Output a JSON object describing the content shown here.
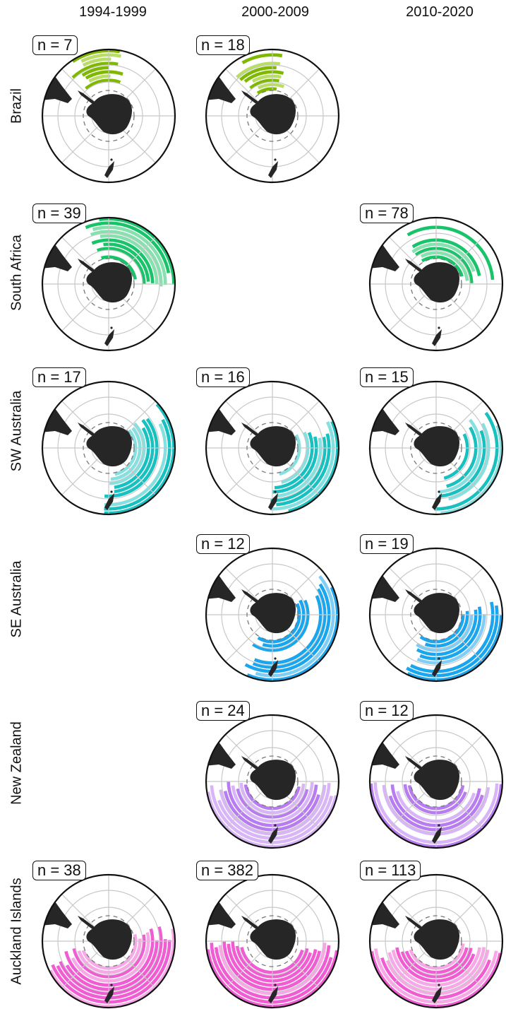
{
  "columns": [
    "1994-1999",
    "2000-2009",
    "2010-2020"
  ],
  "rows": [
    "Brazil",
    "South Africa",
    "SW Australia",
    "SE Australia",
    "New Zealand",
    "Auckland Islands"
  ],
  "colors": {
    "Brazil": {
      "dark": "#7fb800",
      "light": "#b9dd66"
    },
    "South Africa": {
      "dark": "#19c36a",
      "light": "#86e1ae"
    },
    "SW Australia": {
      "dark": "#18c0c0",
      "light": "#86e0e0"
    },
    "SE Australia": {
      "dark": "#1aa6ee",
      "light": "#80cdf6"
    },
    "New Zealand": {
      "dark": "#b77cf0",
      "light": "#d8b5f7"
    },
    "Auckland Islands": {
      "dark": "#f05cd2",
      "light": "#f7a8e6"
    },
    "land": "#262626",
    "grid": "#c8c8c8",
    "dashed_ring": "#777777"
  },
  "panels": [
    {
      "row": "Brazil",
      "period": "1994-1999",
      "n_label": "n = 7",
      "sector": [
        225,
        290
      ]
    },
    {
      "row": "Brazil",
      "period": "2000-2009",
      "n_label": "n = 18",
      "sector": [
        225,
        292
      ]
    },
    {
      "row": "South Africa",
      "period": "1994-1999",
      "n_label": "n = 39",
      "sector": [
        245,
        365
      ]
    },
    {
      "row": "South Africa",
      "period": "2010-2020",
      "n_label": "n = 78",
      "sector": [
        232,
        360
      ]
    },
    {
      "row": "SW Australia",
      "period": "1994-1999",
      "n_label": "n = 17",
      "sector": [
        -45,
        95
      ]
    },
    {
      "row": "SW Australia",
      "period": "2000-2009",
      "n_label": "n = 16",
      "sector": [
        -30,
        95
      ]
    },
    {
      "row": "SW Australia",
      "period": "2010-2020",
      "n_label": "n = 15",
      "sector": [
        -40,
        92
      ]
    },
    {
      "row": "SE Australia",
      "period": "2000-2009",
      "n_label": "n = 12",
      "sector": [
        -40,
        125
      ]
    },
    {
      "row": "SE Australia",
      "period": "2010-2020",
      "n_label": "n = 19",
      "sector": [
        -15,
        130
      ]
    },
    {
      "row": "New Zealand",
      "period": "2000-2009",
      "n_label": "n = 24",
      "sector": [
        0,
        180
      ]
    },
    {
      "row": "New Zealand",
      "period": "2010-2020",
      "n_label": "n = 12",
      "sector": [
        0,
        180
      ]
    },
    {
      "row": "Auckland Islands",
      "period": "1994-1999",
      "n_label": "n = 38",
      "sector": [
        -20,
        170
      ]
    },
    {
      "row": "Auckland Islands",
      "period": "2000-2009",
      "n_label": "n = 382",
      "sector": [
        0,
        180
      ]
    },
    {
      "row": "Auckland Islands",
      "period": "2010-2020",
      "n_label": "n = 113",
      "sector": [
        5,
        175
      ]
    }
  ]
}
